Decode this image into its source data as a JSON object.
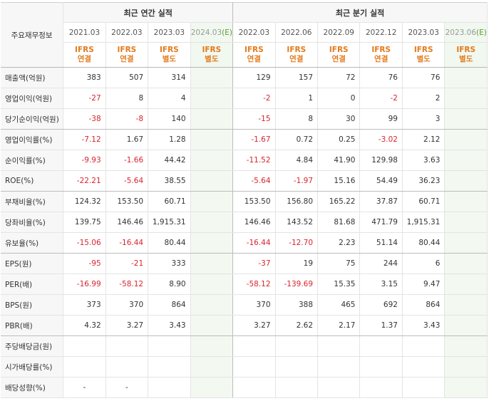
{
  "header": {
    "row_label": "주요재무정보",
    "annual_title": "최근 연간 실적",
    "quarter_title": "최근 분기 실적",
    "annual_periods": [
      "2021.03",
      "2022.03",
      "2023.03",
      "2024.03"
    ],
    "annual_estimate_mark": "(E)",
    "quarter_periods": [
      "2022.03",
      "2022.06",
      "2022.09",
      "2022.12",
      "2023.03",
      "2023.06"
    ],
    "quarter_estimate_mark": "(E)",
    "annual_basis": [
      [
        "IFRS",
        "연결"
      ],
      [
        "IFRS",
        "연결"
      ],
      [
        "IFRS",
        "별도"
      ],
      [
        "IFRS",
        "별도"
      ]
    ],
    "quarter_basis": [
      [
        "IFRS",
        "연결"
      ],
      [
        "IFRS",
        "연결"
      ],
      [
        "IFRS",
        "연결"
      ],
      [
        "IFRS",
        "연결"
      ],
      [
        "IFRS",
        "별도"
      ],
      [
        "IFRS",
        "별도"
      ]
    ]
  },
  "rows": [
    {
      "label": "매출액(억원)",
      "annual": [
        "383",
        "507",
        "314",
        ""
      ],
      "quarter": [
        "129",
        "157",
        "72",
        "76",
        "76",
        ""
      ]
    },
    {
      "label": "영업이익(억원)",
      "annual": [
        "-27",
        "8",
        "4",
        ""
      ],
      "quarter": [
        "-2",
        "1",
        "0",
        "-2",
        "2",
        ""
      ]
    },
    {
      "label": "당기순이익(억원)",
      "annual": [
        "-38",
        "-8",
        "140",
        ""
      ],
      "quarter": [
        "-15",
        "8",
        "30",
        "99",
        "3",
        ""
      ]
    },
    {
      "label": "영업이익률(%)",
      "annual": [
        "-7.12",
        "1.67",
        "1.28",
        ""
      ],
      "quarter": [
        "-1.67",
        "0.72",
        "0.25",
        "-3.02",
        "2.12",
        ""
      ]
    },
    {
      "label": "순이익률(%)",
      "annual": [
        "-9.93",
        "-1.66",
        "44.42",
        ""
      ],
      "quarter": [
        "-11.52",
        "4.84",
        "41.90",
        "129.98",
        "3.63",
        ""
      ]
    },
    {
      "label": "ROE(%)",
      "annual": [
        "-22.21",
        "-5.64",
        "38.55",
        ""
      ],
      "quarter": [
        "-5.64",
        "-1.97",
        "15.16",
        "54.49",
        "36.23",
        ""
      ]
    },
    {
      "label": "부채비율(%)",
      "annual": [
        "124.32",
        "153.50",
        "60.71",
        ""
      ],
      "quarter": [
        "153.50",
        "156.80",
        "165.22",
        "37.87",
        "60.71",
        ""
      ]
    },
    {
      "label": "당좌비율(%)",
      "annual": [
        "139.75",
        "146.46",
        "1,915.31",
        ""
      ],
      "quarter": [
        "146.46",
        "143.52",
        "81.68",
        "471.79",
        "1,915.31",
        ""
      ]
    },
    {
      "label": "유보율(%)",
      "annual": [
        "-15.06",
        "-16.44",
        "80.44",
        ""
      ],
      "quarter": [
        "-16.44",
        "-12.70",
        "2.23",
        "51.14",
        "80.44",
        ""
      ]
    },
    {
      "label": "EPS(원)",
      "annual": [
        "-95",
        "-21",
        "333",
        ""
      ],
      "quarter": [
        "-37",
        "19",
        "75",
        "244",
        "6",
        ""
      ]
    },
    {
      "label": "PER(배)",
      "annual": [
        "-16.99",
        "-58.12",
        "8.90",
        ""
      ],
      "quarter": [
        "-58.12",
        "-139.69",
        "15.35",
        "3.15",
        "9.47",
        ""
      ]
    },
    {
      "label": "BPS(원)",
      "annual": [
        "373",
        "370",
        "864",
        ""
      ],
      "quarter": [
        "370",
        "388",
        "465",
        "692",
        "864",
        ""
      ]
    },
    {
      "label": "PBR(배)",
      "annual": [
        "4.32",
        "3.27",
        "3.43",
        ""
      ],
      "quarter": [
        "3.27",
        "2.62",
        "2.17",
        "1.37",
        "3.43",
        ""
      ]
    },
    {
      "label": "주당배당금(원)",
      "annual": [
        "",
        "",
        "",
        ""
      ],
      "quarter": [
        "",
        "",
        "",
        "",
        "",
        ""
      ]
    },
    {
      "label": "시가배당률(%)",
      "annual": [
        "",
        "",
        "",
        ""
      ],
      "quarter": [
        "",
        "",
        "",
        "",
        "",
        ""
      ]
    },
    {
      "label": "배당성향(%)",
      "annual": [
        "-",
        "-",
        "",
        ""
      ],
      "quarter": [
        "",
        "",
        "",
        "",
        "",
        ""
      ]
    }
  ],
  "colors": {
    "negative": "#d8242e",
    "ifrs": "#e37a1c",
    "estimate_bg": "#f3f8f1",
    "estimate_mark": "#5a9f2f"
  }
}
